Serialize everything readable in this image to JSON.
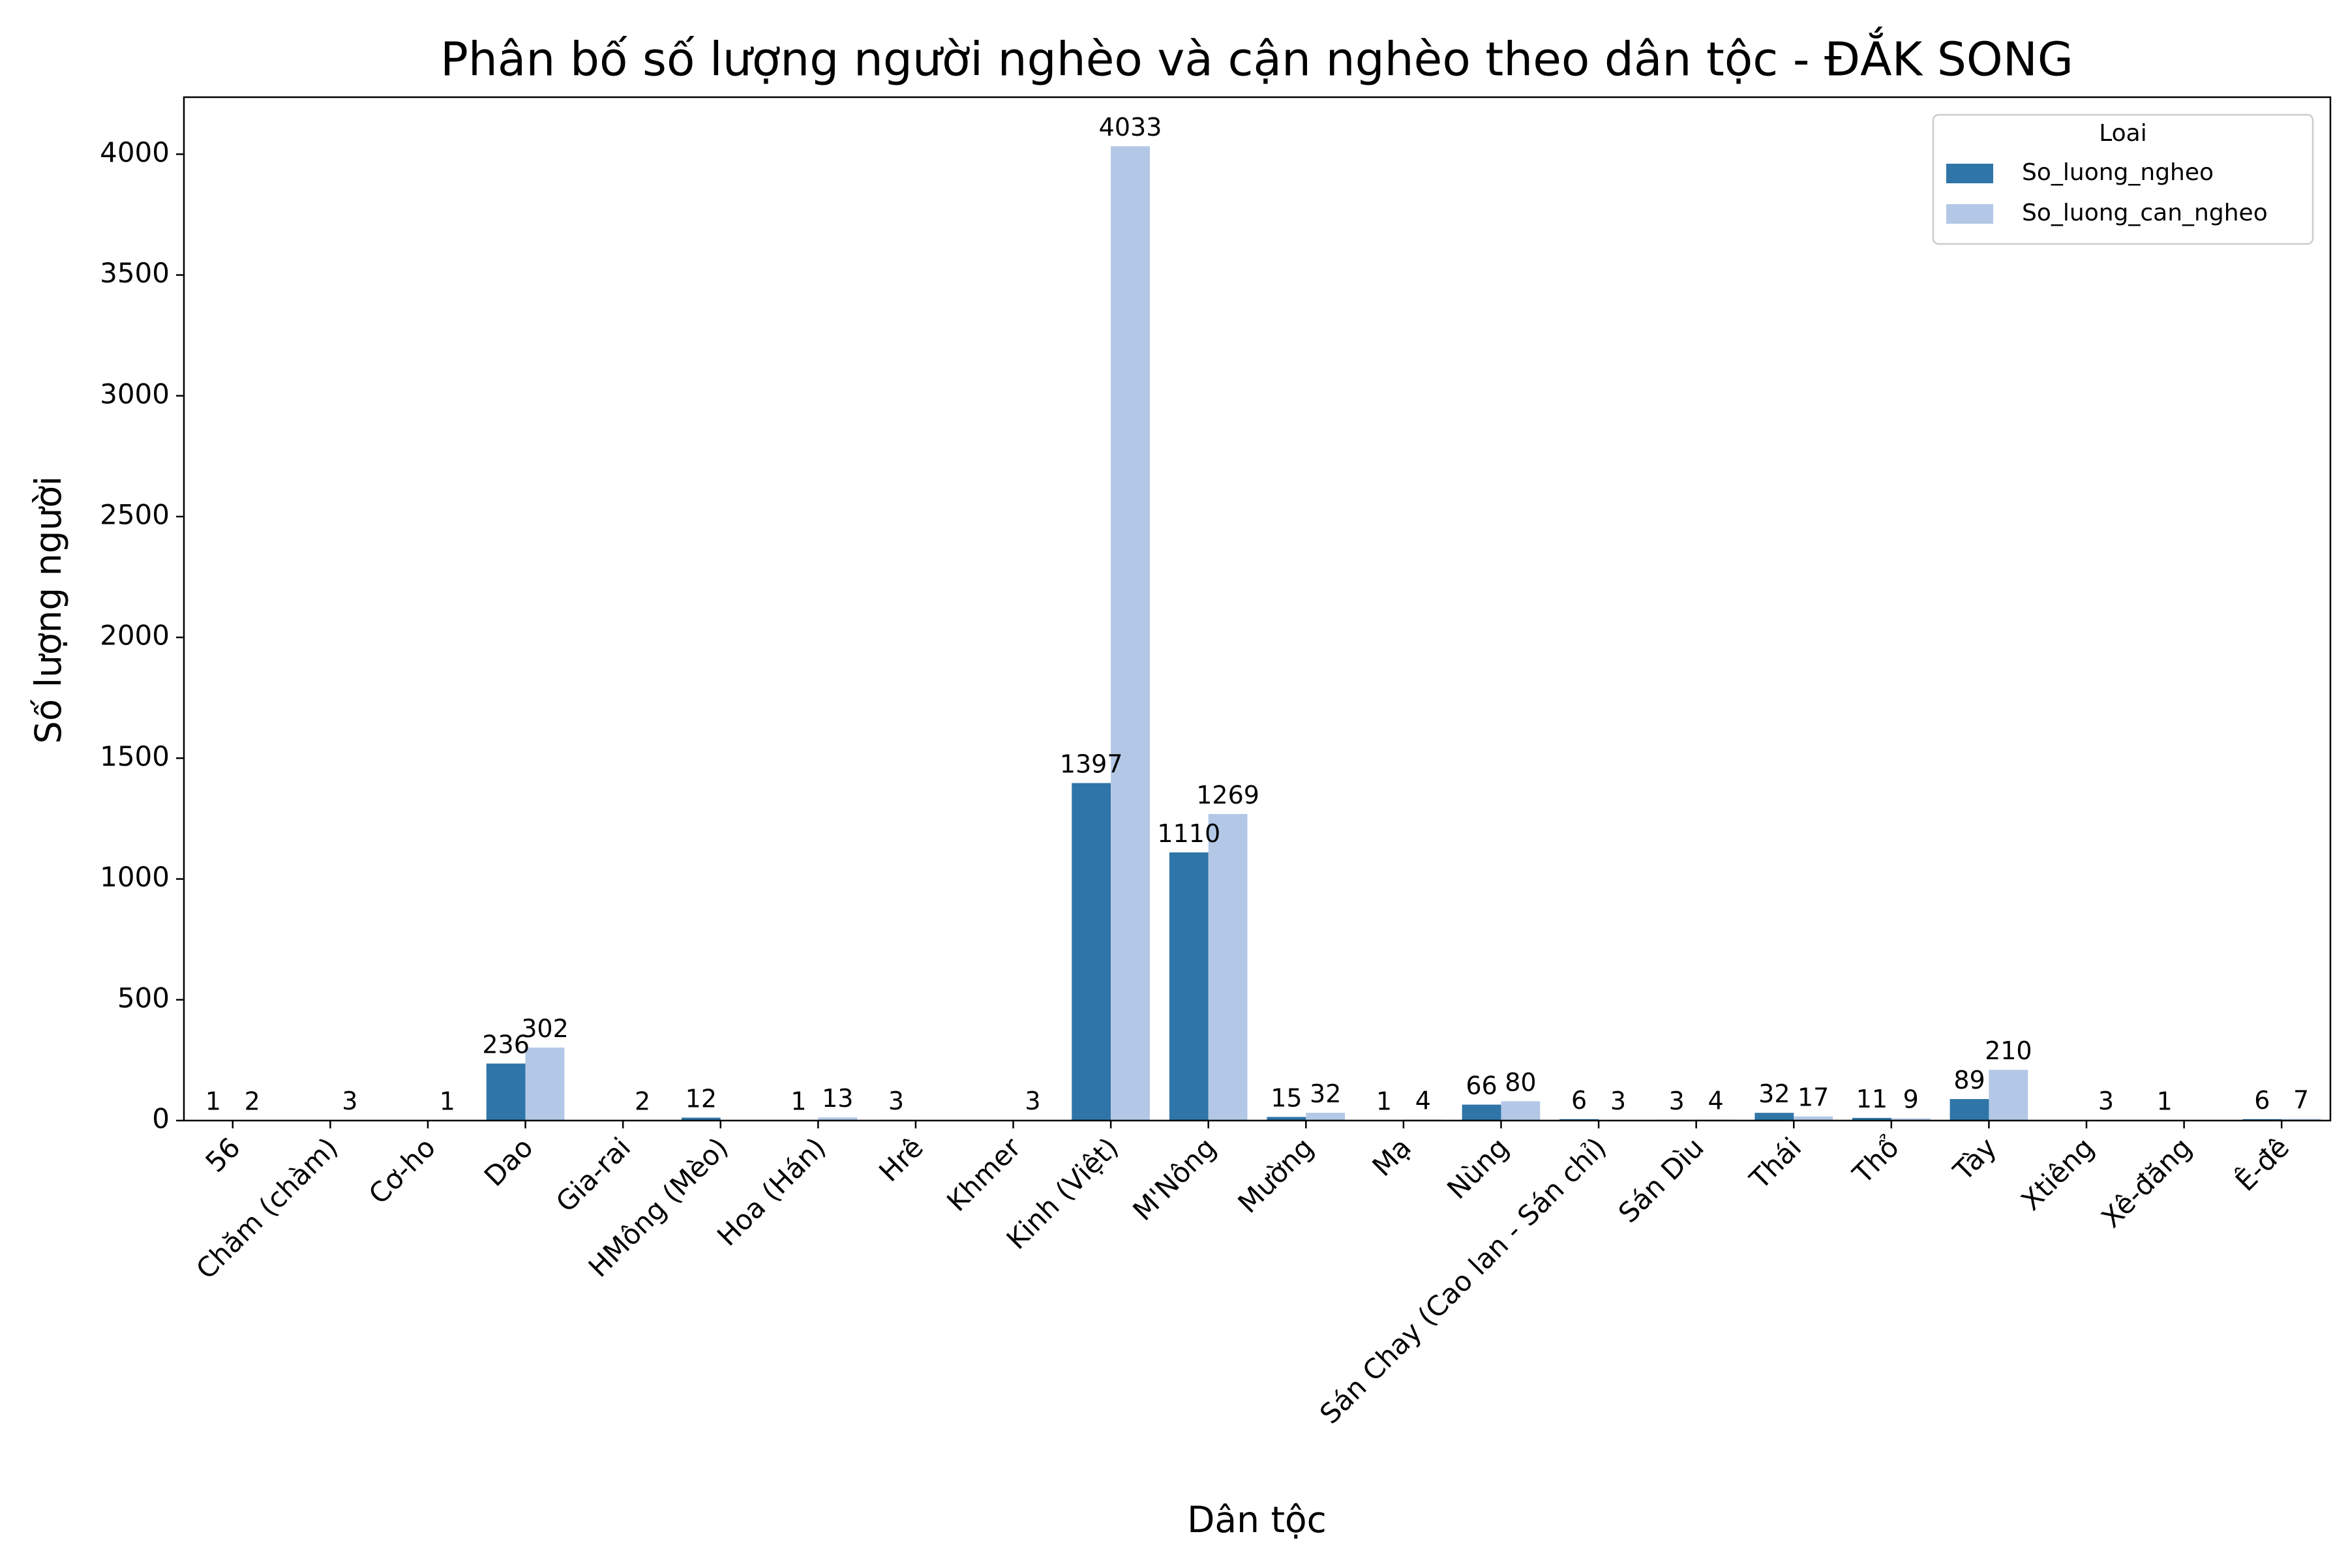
{
  "chart_data": {
    "type": "bar",
    "title": "Phân bố số lượng người nghèo và cận nghèo theo dân tộc - ĐẮK SONG",
    "xlabel": "Dân tộc",
    "ylabel": "Số lượng người",
    "ylim": [
      0,
      4236
    ],
    "yticks": [
      0,
      500,
      1000,
      1500,
      2000,
      2500,
      3000,
      3500,
      4000
    ],
    "grid": false,
    "legend": {
      "title": "Loai",
      "position": "top-right"
    },
    "categories": [
      "56",
      "Chăm (chàm)",
      "Cơ-ho",
      "Dao",
      "Gia-rai",
      "HMông (Mèo)",
      "Hoa (Hán)",
      "Hrê",
      "Khmer",
      "Kinh (Việt)",
      "M'Nông",
      "Mường",
      "Mạ",
      "Nùng",
      "Sán Chay (Cao lan - Sán chỉ)",
      "Sán Dìu",
      "Thái",
      "Thổ",
      "Tày",
      "Xtiêng",
      "Xê-đăng",
      "Ê-đê"
    ],
    "series": [
      {
        "name": "So_luong_ngheo",
        "color": "#2f75a8",
        "values": [
          1,
          null,
          null,
          236,
          null,
          12,
          1,
          3,
          null,
          1397,
          1110,
          15,
          1,
          66,
          6,
          3,
          32,
          11,
          89,
          null,
          1,
          6
        ]
      },
      {
        "name": "So_luong_can_ngheo",
        "color": "#b3c8e6",
        "values": [
          2,
          3,
          1,
          302,
          2,
          null,
          13,
          null,
          3,
          4033,
          1269,
          32,
          4,
          80,
          3,
          4,
          17,
          9,
          210,
          3,
          null,
          7
        ]
      }
    ]
  }
}
